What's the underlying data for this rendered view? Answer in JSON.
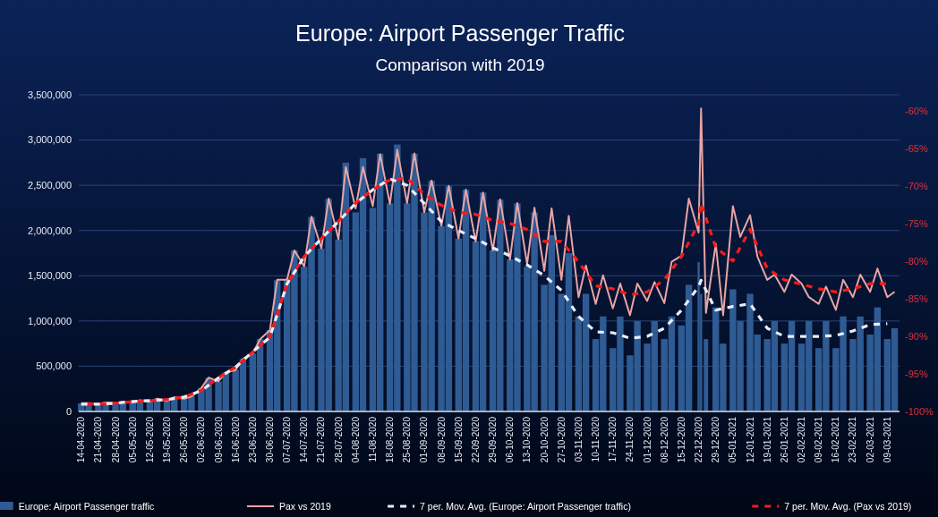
{
  "chart_data": {
    "type": "bar",
    "title": "Europe: Airport Passenger Traffic",
    "subtitle": "Comparison with 2019",
    "x": [
      "2020-04-14",
      "2020-04-17",
      "2020-04-21",
      "2020-04-24",
      "2020-04-28",
      "2020-05-01",
      "2020-05-05",
      "2020-05-08",
      "2020-05-12",
      "2020-05-15",
      "2020-05-19",
      "2020-05-22",
      "2020-05-26",
      "2020-05-29",
      "2020-06-02",
      "2020-06-05",
      "2020-06-09",
      "2020-06-12",
      "2020-06-16",
      "2020-06-19",
      "2020-06-23",
      "2020-06-26",
      "2020-06-30",
      "2020-07-03",
      "2020-07-07",
      "2020-07-10",
      "2020-07-14",
      "2020-07-17",
      "2020-07-21",
      "2020-07-24",
      "2020-07-28",
      "2020-07-31",
      "2020-08-04",
      "2020-08-07",
      "2020-08-11",
      "2020-08-14",
      "2020-08-18",
      "2020-08-21",
      "2020-08-25",
      "2020-08-28",
      "2020-09-01",
      "2020-09-04",
      "2020-09-08",
      "2020-09-11",
      "2020-09-15",
      "2020-09-18",
      "2020-09-22",
      "2020-09-25",
      "2020-09-29",
      "2020-10-02",
      "2020-10-06",
      "2020-10-09",
      "2020-10-13",
      "2020-10-16",
      "2020-10-20",
      "2020-10-23",
      "2020-10-27",
      "2020-10-30",
      "2020-11-03",
      "2020-11-06",
      "2020-11-10",
      "2020-11-13",
      "2020-11-17",
      "2020-11-20",
      "2020-11-24",
      "2020-11-27",
      "2020-12-01",
      "2020-12-04",
      "2020-12-08",
      "2020-12-11",
      "2020-12-15",
      "2020-12-18",
      "2020-12-22",
      "2020-12-23",
      "2020-12-25",
      "2020-12-29",
      "2021-01-01",
      "2021-01-05",
      "2021-01-08",
      "2021-01-12",
      "2021-01-15",
      "2021-01-19",
      "2021-01-22",
      "2021-01-26",
      "2021-01-29",
      "2021-02-02",
      "2021-02-05",
      "2021-02-09",
      "2021-02-12",
      "2021-02-16",
      "2021-02-19",
      "2021-02-23",
      "2021-02-26",
      "2021-03-02",
      "2021-03-05",
      "2021-03-09",
      "2021-03-12"
    ],
    "series": [
      {
        "name": "Europe: Airport Passenger traffic",
        "color": "#2f5b94",
        "values": [
          90000,
          100000,
          90000,
          100000,
          90000,
          110000,
          100000,
          130000,
          110000,
          140000,
          120000,
          160000,
          140000,
          170000,
          260000,
          370000,
          330000,
          430000,
          460000,
          580000,
          640000,
          800000,
          900000,
          1450000,
          1450000,
          1780000,
          1600000,
          2150000,
          1800000,
          2350000,
          1900000,
          2750000,
          2200000,
          2800000,
          2250000,
          2850000,
          2300000,
          2950000,
          2300000,
          2850000,
          2200000,
          2550000,
          2050000,
          2490000,
          1910000,
          2450000,
          1880000,
          2420000,
          1780000,
          2340000,
          1680000,
          2300000,
          1600000,
          2200000,
          1400000,
          1950000,
          1300000,
          1750000,
          1050000,
          1300000,
          800000,
          1050000,
          700000,
          1050000,
          620000,
          1000000,
          750000,
          1000000,
          800000,
          1050000,
          950000,
          1400000,
          1650000,
          1300000,
          800000,
          1150000,
          750000,
          1350000,
          1000000,
          1300000,
          850000,
          800000,
          1000000,
          750000,
          1000000,
          750000,
          1000000,
          700000,
          1000000,
          700000,
          1050000,
          800000,
          1050000,
          850000,
          1150000,
          800000,
          920000
        ]
      },
      {
        "name": "Pax vs 2019",
        "type": "line",
        "axis": "y2",
        "color": "#e8a5a5",
        "line_style": "solid",
        "values": [
          -98.9,
          -98.9,
          -99.0,
          -98.8,
          -98.9,
          -98.7,
          -98.8,
          -98.5,
          -98.7,
          -98.3,
          -98.6,
          -98.1,
          -98.3,
          -98.0,
          -96.9,
          -95.5,
          -96.0,
          -94.8,
          -94.5,
          -93.0,
          -92.3,
          -90.4,
          -89.2,
          -82.5,
          -82.5,
          -78.6,
          -80.7,
          -74.1,
          -78.3,
          -71.7,
          -77.1,
          -67.5,
          -73.0,
          -67.5,
          -72.7,
          -65.8,
          -72.4,
          -65.2,
          -72.3,
          -65.7,
          -73.5,
          -69.3,
          -75.3,
          -70.0,
          -77.0,
          -70.5,
          -77.4,
          -70.9,
          -78.6,
          -71.8,
          -79.8,
          -72.3,
          -80.4,
          -72.9,
          -81.3,
          -73.0,
          -82.5,
          -74.0,
          -84.8,
          -80.6,
          -85.7,
          -81.9,
          -86.3,
          -83.0,
          -87.2,
          -83.0,
          -85.3,
          -82.8,
          -85.6,
          -80.1,
          -79.3,
          -71.7,
          -76.2,
          -59.7,
          -86.9,
          -77.7,
          -87.2,
          -72.7,
          -76.8,
          -73.9,
          -79.4,
          -82.5,
          -81.8,
          -84.1,
          -81.8,
          -83.0,
          -84.8,
          -85.7,
          -83.4,
          -86.5,
          -82.5,
          -84.8,
          -81.8,
          -84.1,
          -81.0,
          -84.8,
          -84.1
        ]
      },
      {
        "name": "7 per. Mov. Avg. (Europe: Airport Passenger traffic)",
        "type": "line",
        "color": "#e6eefa",
        "line_style": "dashed",
        "x": [
          "2020-04-14",
          "2020-04-21",
          "2020-04-28",
          "2020-05-05",
          "2020-05-12",
          "2020-05-19",
          "2020-05-26",
          "2020-06-02",
          "2020-06-09",
          "2020-06-16",
          "2020-06-23",
          "2020-06-30",
          "2020-07-07",
          "2020-07-14",
          "2020-07-21",
          "2020-07-28",
          "2020-08-04",
          "2020-08-11",
          "2020-08-18",
          "2020-08-25",
          "2020-09-01",
          "2020-09-08",
          "2020-09-15",
          "2020-09-22",
          "2020-09-29",
          "2020-10-06",
          "2020-10-13",
          "2020-10-20",
          "2020-10-27",
          "2020-11-03",
          "2020-11-10",
          "2020-11-17",
          "2020-11-24",
          "2020-12-01",
          "2020-12-08",
          "2020-12-15",
          "2020-12-22",
          "2020-12-23",
          "2020-12-29",
          "2021-01-05",
          "2021-01-12",
          "2021-01-19",
          "2021-01-26",
          "2021-02-02",
          "2021-02-09",
          "2021-02-16",
          "2021-02-23",
          "2021-03-02",
          "2021-03-09"
        ],
        "values": [
          80000,
          80000,
          90000,
          110000,
          120000,
          130000,
          160000,
          230000,
          370000,
          490000,
          660000,
          820000,
          1410000,
          1710000,
          1910000,
          2100000,
          2300000,
          2450000,
          2570000,
          2500000,
          2300000,
          2100000,
          2000000,
          1910000,
          1810000,
          1720000,
          1620000,
          1500000,
          1340000,
          1050000,
          880000,
          870000,
          810000,
          830000,
          920000,
          1120000,
          1380000,
          1450000,
          1120000,
          1160000,
          1190000,
          920000,
          830000,
          830000,
          830000,
          840000,
          890000,
          960000,
          970000
        ]
      },
      {
        "name": "7 per. Mov. Avg. (Pax vs 2019)",
        "type": "line",
        "axis": "y2",
        "color": "#ff1a1a",
        "line_style": "dashed",
        "x": [
          "2020-04-14",
          "2020-04-21",
          "2020-04-28",
          "2020-05-05",
          "2020-05-12",
          "2020-05-19",
          "2020-05-26",
          "2020-06-02",
          "2020-06-09",
          "2020-06-16",
          "2020-06-23",
          "2020-06-30",
          "2020-07-07",
          "2020-07-14",
          "2020-07-21",
          "2020-07-28",
          "2020-08-04",
          "2020-08-11",
          "2020-08-18",
          "2020-08-25",
          "2020-09-01",
          "2020-09-08",
          "2020-09-15",
          "2020-09-22",
          "2020-09-29",
          "2020-10-06",
          "2020-10-13",
          "2020-10-20",
          "2020-10-27",
          "2020-11-03",
          "2020-11-10",
          "2020-11-17",
          "2020-11-24",
          "2020-12-01",
          "2020-12-08",
          "2020-12-15",
          "2020-12-22",
          "2020-12-23",
          "2020-12-29",
          "2021-01-05",
          "2021-01-12",
          "2021-01-19",
          "2021-01-26",
          "2021-02-02",
          "2021-02-09",
          "2021-02-16",
          "2021-02-23",
          "2021-03-02",
          "2021-03-09"
        ],
        "values": [
          -99.0,
          -99.0,
          -98.9,
          -98.7,
          -98.6,
          -98.4,
          -98.1,
          -97.2,
          -95.5,
          -94.1,
          -92.1,
          -90.1,
          -83.0,
          -79.4,
          -77.0,
          -74.7,
          -72.3,
          -70.5,
          -69.2,
          -69.0,
          -71.1,
          -72.6,
          -73.5,
          -73.8,
          -74.6,
          -75.0,
          -75.8,
          -77.4,
          -77.4,
          -80.1,
          -83.3,
          -83.7,
          -84.5,
          -84.1,
          -82.5,
          -79.4,
          -75.0,
          -72.3,
          -78.2,
          -80.0,
          -75.8,
          -81.0,
          -82.5,
          -83.1,
          -83.7,
          -84.1,
          -83.7,
          -83.0,
          -83.0
        ]
      }
    ],
    "xlim": [
      "2020-04-13",
      "2021-03-14"
    ],
    "xticks": [
      {
        "value": "2020-04-14",
        "label": "14-04-2020"
      },
      {
        "value": "2020-04-21",
        "label": "21-04-2020"
      },
      {
        "value": "2020-04-28",
        "label": "28-04-2020"
      },
      {
        "value": "2020-05-05",
        "label": "05-05-2020"
      },
      {
        "value": "2020-05-12",
        "label": "12-05-2020"
      },
      {
        "value": "2020-05-19",
        "label": "19-05-2020"
      },
      {
        "value": "2020-05-26",
        "label": "26-05-2020"
      },
      {
        "value": "2020-06-02",
        "label": "02-06-2020"
      },
      {
        "value": "2020-06-09",
        "label": "09-06-2020"
      },
      {
        "value": "2020-06-16",
        "label": "16-06-2020"
      },
      {
        "value": "2020-06-23",
        "label": "23-06-2020"
      },
      {
        "value": "2020-06-30",
        "label": "30-06-2020"
      },
      {
        "value": "2020-07-07",
        "label": "07-07-2020"
      },
      {
        "value": "2020-07-14",
        "label": "14-07-2020"
      },
      {
        "value": "2020-07-21",
        "label": "21-07-2020"
      },
      {
        "value": "2020-07-28",
        "label": "28-07-2020"
      },
      {
        "value": "2020-08-04",
        "label": "04-08-2020"
      },
      {
        "value": "2020-08-11",
        "label": "11-08-2020"
      },
      {
        "value": "2020-08-18",
        "label": "18-08-2020"
      },
      {
        "value": "2020-08-25",
        "label": "25-08-2020"
      },
      {
        "value": "2020-09-01",
        "label": "01-09-2020"
      },
      {
        "value": "2020-09-08",
        "label": "08-09-2020"
      },
      {
        "value": "2020-09-15",
        "label": "15-09-2020"
      },
      {
        "value": "2020-09-22",
        "label": "22-09-2020"
      },
      {
        "value": "2020-09-29",
        "label": "29-09-2020"
      },
      {
        "value": "2020-10-06",
        "label": "06-10-2020"
      },
      {
        "value": "2020-10-13",
        "label": "13-10-2020"
      },
      {
        "value": "2020-10-20",
        "label": "20-10-2020"
      },
      {
        "value": "2020-10-27",
        "label": "27-10-2020"
      },
      {
        "value": "2020-11-03",
        "label": "03-11-2020"
      },
      {
        "value": "2020-11-10",
        "label": "10-11-2020"
      },
      {
        "value": "2020-11-17",
        "label": "17-11-2020"
      },
      {
        "value": "2020-11-24",
        "label": "24-11-2020"
      },
      {
        "value": "2020-12-01",
        "label": "01-12-2020"
      },
      {
        "value": "2020-12-08",
        "label": "08-12-2020"
      },
      {
        "value": "2020-12-15",
        "label": "15-12-2020"
      },
      {
        "value": "2020-12-22",
        "label": "22-12-2020"
      },
      {
        "value": "2020-12-29",
        "label": "29-12-2020"
      },
      {
        "value": "2021-01-05",
        "label": "05-01-2021"
      },
      {
        "value": "2021-01-12",
        "label": "12-01-2021"
      },
      {
        "value": "2021-01-19",
        "label": "19-01-2021"
      },
      {
        "value": "2021-01-26",
        "label": "26-01-2021"
      },
      {
        "value": "2021-02-02",
        "label": "02-02-2021"
      },
      {
        "value": "2021-02-09",
        "label": "09-02-2021"
      },
      {
        "value": "2021-02-16",
        "label": "16-02-2021"
      },
      {
        "value": "2021-02-23",
        "label": "23-02-2021"
      },
      {
        "value": "2021-03-02",
        "label": "02-03-2021"
      },
      {
        "value": "2021-03-09",
        "label": "09-03-2021"
      }
    ],
    "ylim": [
      0,
      3500000
    ],
    "yticks": [
      0,
      {
        "value": 500000,
        "label": "500,000"
      },
      {
        "value": 1000000,
        "label": "1,000,000"
      },
      {
        "value": 1500000,
        "label": "1,500,000"
      },
      {
        "value": 2000000,
        "label": "2,000,000"
      },
      {
        "value": 2500000,
        "label": "2,500,000"
      },
      {
        "value": 3000000,
        "label": "3,000,000"
      },
      {
        "value": 3500000,
        "label": "3,500,000"
      }
    ],
    "y2lim": [
      -100,
      -57.9
    ],
    "y2ticks": [
      {
        "value": -100,
        "label": "-100%"
      },
      {
        "value": -95,
        "label": "-95%"
      },
      {
        "value": -90,
        "label": "-90%"
      },
      {
        "value": -85,
        "label": "-85%"
      },
      {
        "value": -80,
        "label": "-80%"
      },
      {
        "value": -75,
        "label": "-75%"
      },
      {
        "value": -70,
        "label": "-70%"
      },
      {
        "value": -65,
        "label": "-65%"
      },
      {
        "value": -60,
        "label": "-60%"
      }
    ],
    "grid": "y",
    "legend": "bottom"
  }
}
